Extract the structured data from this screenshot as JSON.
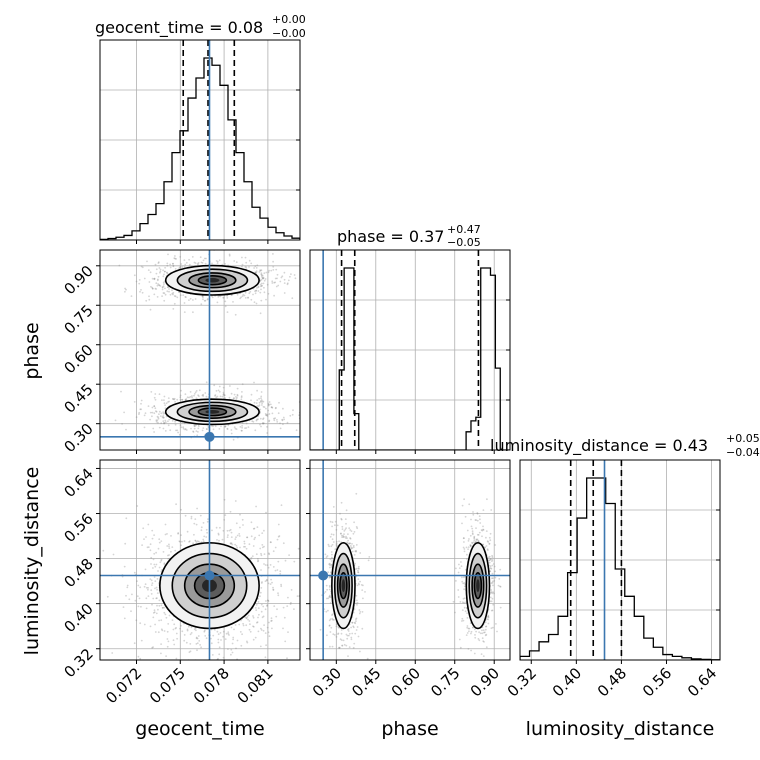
{
  "chart_data": {
    "type": "corner",
    "parameters": [
      {
        "name": "geocent_time",
        "range": [
          0.0695,
          0.0832
        ],
        "ticks": [
          0.072,
          0.075,
          0.078,
          0.081
        ],
        "tick_labels": [
          "0.072",
          "0.075",
          "0.078",
          "0.081"
        ],
        "injection": 0.077,
        "quantiles": [
          0.0752,
          0.0769,
          0.0787
        ],
        "title": {
          "text": "geocent_time = 0.08",
          "plus": "+0.00",
          "minus": "−0.00"
        },
        "histogram": [
          0.3,
          0.8,
          1.5,
          2.5,
          5,
          9,
          14,
          20,
          32,
          48,
          60,
          78,
          89,
          100,
          96,
          85,
          66,
          48,
          32,
          18,
          12,
          7,
          4,
          2.2,
          1
        ]
      },
      {
        "name": "phase",
        "range": [
          0.2,
          0.96
        ],
        "ticks": [
          0.3,
          0.45,
          0.6,
          0.75,
          0.9
        ],
        "tick_labels": [
          "0.30",
          "0.45",
          "0.60",
          "0.75",
          "0.90"
        ],
        "injection": 0.25,
        "quantiles": [
          0.32,
          0.37,
          0.84
        ],
        "title": {
          "text": "phase = 0.37",
          "plus": "+0.47",
          "minus": "−0.05"
        },
        "histogram": [
          0,
          0,
          0,
          0,
          0,
          0,
          44,
          100,
          100,
          20,
          0,
          0,
          0,
          0,
          0,
          0,
          0,
          0,
          0,
          0,
          0,
          0,
          0,
          0,
          0,
          0,
          0,
          0,
          0,
          0,
          0,
          0,
          10,
          16,
          18,
          100,
          100,
          96,
          45,
          0,
          0
        ]
      },
      {
        "name": "luminosity_distance",
        "range": [
          0.3,
          0.655
        ],
        "ticks": [
          0.32,
          0.4,
          0.48,
          0.56,
          0.64
        ],
        "tick_labels": [
          "0.32",
          "0.40",
          "0.48",
          "0.56",
          "0.64"
        ],
        "injection": 0.45,
        "quantiles": [
          0.39,
          0.43,
          0.48
        ],
        "title": {
          "text": "luminosity_distance = 0.43",
          "plus": "+0.05",
          "minus": "−0.04"
        },
        "histogram": [
          2,
          5,
          10,
          14,
          24,
          48,
          78,
          100,
          100,
          86,
          50,
          35,
          24,
          12,
          7,
          3,
          2,
          1.2,
          0.6,
          0.3,
          0.1
        ]
      }
    ],
    "pairs": [
      {
        "x": "geocent_time",
        "y": "phase"
      },
      {
        "x": "geocent_time",
        "y": "luminosity_distance"
      },
      {
        "x": "phase",
        "y": "luminosity_distance"
      }
    ],
    "injection_color": "#3b77b0",
    "grid": true,
    "contour_color": "#000000",
    "density_color": "#555555"
  }
}
